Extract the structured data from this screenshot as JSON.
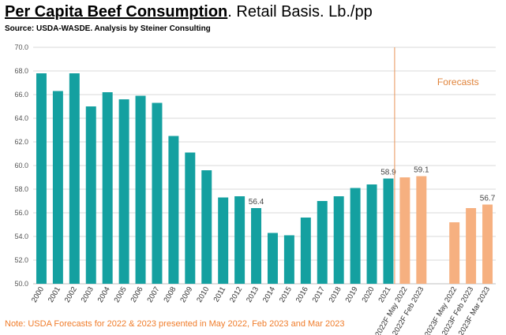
{
  "header": {
    "title_main": "Per Capita Beef Consumption",
    "title_rest": ".  Retail Basis.  Lb./pp",
    "source": "Source: USDA-WASDE.  Analysis by Steiner Consulting"
  },
  "note": "Note:  USDA Forecasts for 2022 & 2023 presented in May 2022,  Feb 2023 and Mar 2023",
  "colors": {
    "actual": "#14a0a0",
    "forecast": "#f6b080",
    "divider": "#e8955a",
    "grid": "#d9d9d9"
  },
  "chart_data": {
    "type": "bar",
    "ylim": [
      50,
      70
    ],
    "yticks": [
      "50.0",
      "52.0",
      "54.0",
      "56.0",
      "58.0",
      "60.0",
      "62.0",
      "64.0",
      "66.0",
      "68.0",
      "70.0"
    ],
    "grid": true,
    "categories": [
      "2000",
      "2001",
      "2002",
      "2003",
      "2004",
      "2005",
      "2006",
      "2007",
      "2008",
      "2009",
      "2010",
      "2011",
      "2012",
      "2013",
      "2014",
      "2015",
      "2016",
      "2017",
      "2018",
      "2019",
      "2020",
      "2021",
      "2022F May 2022",
      "2022F Feb 2023",
      "",
      "2023F May 2022",
      "2023F Feb 2023",
      "2023F Mar 2023"
    ],
    "values": [
      67.8,
      66.3,
      67.8,
      65.0,
      66.2,
      65.6,
      65.9,
      65.3,
      62.5,
      61.1,
      59.6,
      57.3,
      57.4,
      56.4,
      54.3,
      54.1,
      55.6,
      57.0,
      57.4,
      58.1,
      58.4,
      58.9,
      59.0,
      59.1,
      null,
      55.2,
      56.4,
      56.7
    ],
    "kinds": [
      "actual",
      "actual",
      "actual",
      "actual",
      "actual",
      "actual",
      "actual",
      "actual",
      "actual",
      "actual",
      "actual",
      "actual",
      "actual",
      "actual",
      "actual",
      "actual",
      "actual",
      "actual",
      "actual",
      "actual",
      "actual",
      "actual",
      "forecast",
      "forecast",
      "gap",
      "forecast",
      "forecast",
      "forecast"
    ],
    "data_labels": [
      {
        "index": 13,
        "text": "56.4"
      },
      {
        "index": 21,
        "text": "58.9"
      },
      {
        "index": 23,
        "text": "59.1"
      },
      {
        "index": 27,
        "text": "56.7"
      }
    ],
    "annotation": "Forecasts"
  }
}
